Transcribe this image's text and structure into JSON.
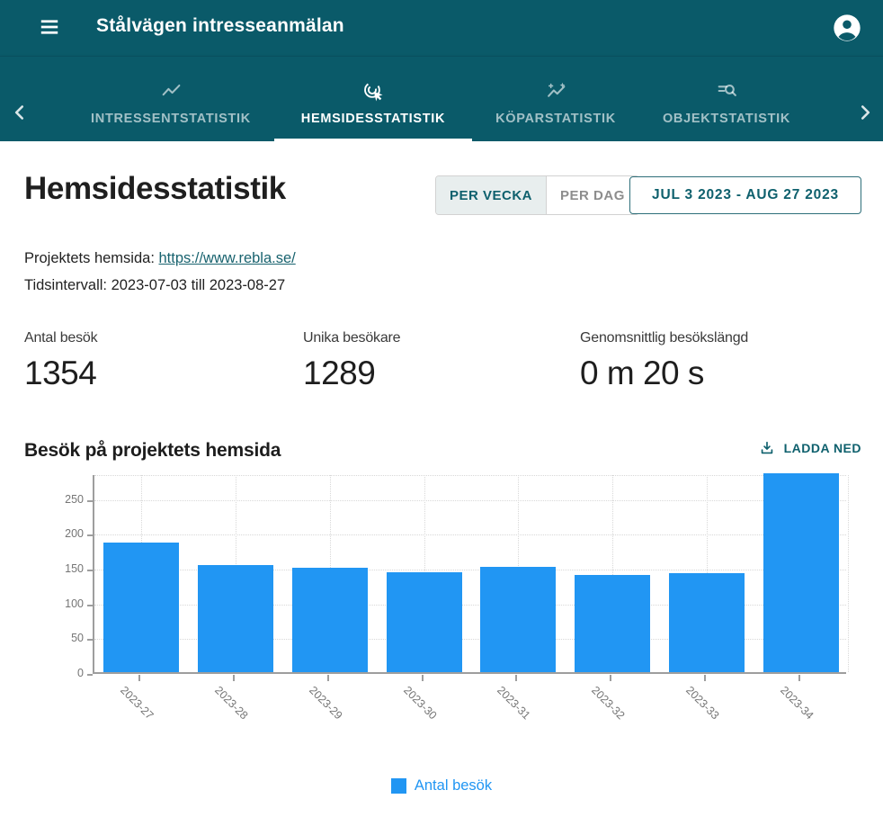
{
  "appbar": {
    "title": "Stålvägen intresseanmälan"
  },
  "tabs": {
    "items": [
      {
        "label": "INTRESSENTSTATISTIK",
        "icon": "trending-chart-icon",
        "active": false
      },
      {
        "label": "HEMSIDESSTATISTIK",
        "icon": "ads-click-icon",
        "active": true
      },
      {
        "label": "KÖPARSTATISTIK",
        "icon": "insights-icon",
        "active": false
      },
      {
        "label": "OBJEKTSTATISTIK",
        "icon": "list-search-icon",
        "active": false
      }
    ]
  },
  "page": {
    "title": "Hemsidesstatistik",
    "toggle": {
      "options": [
        "PER VECKA",
        "PER DAG"
      ],
      "selected": "PER VECKA"
    },
    "date_range_button": "JUL 3 2023 - AUG 27 2023",
    "website_label": "Projektets hemsida:",
    "website_url": "https://www.rebla.se/",
    "interval_text": "Tidsintervall: 2023-07-03 till 2023-08-27",
    "stats": [
      {
        "label": "Antal besök",
        "value": "1354"
      },
      {
        "label": "Unika besökare",
        "value": "1289"
      },
      {
        "label": "Genomsnittlig besökslängd",
        "value": "0 m 20 s"
      }
    ],
    "chart_title": "Besök på projektets hemsida",
    "download_label": "LADDA NED"
  },
  "chart_data": {
    "type": "bar",
    "title": "Besök på projektets hemsida",
    "categories": [
      "2023-27",
      "2023-28",
      "2023-29",
      "2023-30",
      "2023-31",
      "2023-32",
      "2023-33",
      "2023-34"
    ],
    "values": [
      186,
      154,
      150,
      144,
      152,
      140,
      142,
      286
    ],
    "series_name": "Antal besök",
    "xlabel": "",
    "ylabel": "",
    "yticks": [
      0,
      50,
      100,
      150,
      200,
      250
    ],
    "ylim": [
      0,
      286
    ],
    "bar_color": "#2196f3",
    "grid": true,
    "legend_position": "bottom"
  },
  "colors": {
    "teal": "#0a5a69",
    "teal_text": "#0e606d",
    "link": "#19636f",
    "accent_blue": "#2196f3",
    "text_dark": "#1f1f1f",
    "muted": "#757575"
  }
}
